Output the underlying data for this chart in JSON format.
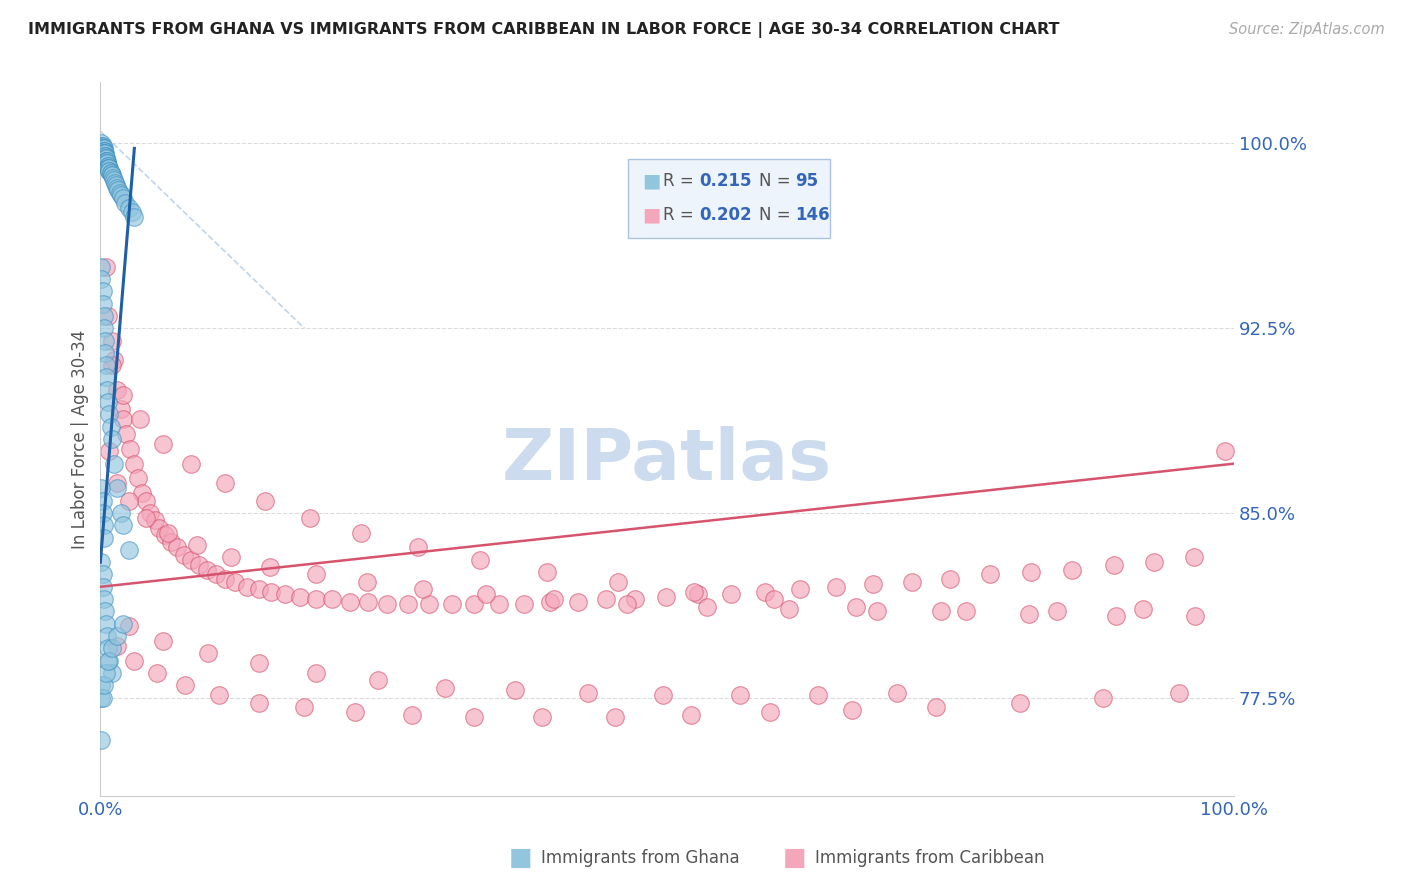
{
  "title": "IMMIGRANTS FROM GHANA VS IMMIGRANTS FROM CARIBBEAN IN LABOR FORCE | AGE 30-34 CORRELATION CHART",
  "source_text": "Source: ZipAtlas.com",
  "ylabel": "In Labor Force | Age 30-34",
  "xmin": 0.0,
  "xmax": 1.0,
  "ymin": 0.735,
  "ymax": 1.025,
  "yticks": [
    0.775,
    0.85,
    0.925,
    1.0
  ],
  "ytick_labels": [
    "77.5%",
    "85.0%",
    "92.5%",
    "100.0%"
  ],
  "xticks": [
    0.0,
    0.2,
    0.4,
    0.6,
    0.8,
    1.0
  ],
  "xtick_labels": [
    "0.0%",
    "",
    "",
    "",
    "",
    "100.0%"
  ],
  "ghana_R": 0.215,
  "ghana_N": 95,
  "caribbean_R": 0.202,
  "caribbean_N": 146,
  "ghana_color": "#92c5de",
  "ghana_edge": "#4393c3",
  "caribbean_color": "#f4a6bb",
  "caribbean_edge": "#d6536d",
  "ghana_line_color": "#1f5fa6",
  "caribbean_line_color": "#d6536d",
  "diag_line_color": "#b8d0e8",
  "watermark_text": "ZIPatlas",
  "watermark_color": "#ccdcee",
  "legend_box_facecolor": "#eef4fb",
  "legend_box_edgecolor": "#aac4e0",
  "axis_label_color": "#3366bb",
  "title_color": "#222222",
  "grid_color": "#cccccc",
  "background_color": "#ffffff",
  "ghana_x": [
    0.001,
    0.001,
    0.001,
    0.002,
    0.002,
    0.002,
    0.002,
    0.003,
    0.003,
    0.003,
    0.003,
    0.003,
    0.003,
    0.003,
    0.004,
    0.004,
    0.004,
    0.004,
    0.004,
    0.005,
    0.005,
    0.005,
    0.005,
    0.006,
    0.006,
    0.006,
    0.007,
    0.007,
    0.007,
    0.007,
    0.008,
    0.008,
    0.008,
    0.009,
    0.009,
    0.01,
    0.01,
    0.011,
    0.012,
    0.013,
    0.014,
    0.015,
    0.016,
    0.017,
    0.018,
    0.02,
    0.022,
    0.025,
    0.028,
    0.03,
    0.001,
    0.001,
    0.002,
    0.002,
    0.003,
    0.003,
    0.004,
    0.004,
    0.005,
    0.005,
    0.006,
    0.007,
    0.008,
    0.009,
    0.01,
    0.012,
    0.015,
    0.018,
    0.02,
    0.025,
    0.001,
    0.002,
    0.002,
    0.003,
    0.004,
    0.005,
    0.006,
    0.007,
    0.008,
    0.01,
    0.001,
    0.001,
    0.002,
    0.003,
    0.005,
    0.007,
    0.01,
    0.015,
    0.02,
    0.001,
    0.002,
    0.002,
    0.003,
    0.003,
    0.001
  ],
  "ghana_y": [
    1.0,
    0.999,
    0.999,
    0.999,
    0.998,
    0.998,
    0.998,
    0.998,
    0.997,
    0.997,
    0.997,
    0.996,
    0.996,
    0.996,
    0.996,
    0.995,
    0.995,
    0.995,
    0.994,
    0.994,
    0.994,
    0.993,
    0.993,
    0.993,
    0.992,
    0.992,
    0.991,
    0.991,
    0.99,
    0.99,
    0.99,
    0.989,
    0.989,
    0.988,
    0.988,
    0.987,
    0.987,
    0.986,
    0.985,
    0.984,
    0.983,
    0.982,
    0.981,
    0.98,
    0.979,
    0.978,
    0.976,
    0.974,
    0.972,
    0.97,
    0.95,
    0.945,
    0.94,
    0.935,
    0.93,
    0.925,
    0.92,
    0.915,
    0.91,
    0.905,
    0.9,
    0.895,
    0.89,
    0.885,
    0.88,
    0.87,
    0.86,
    0.85,
    0.845,
    0.835,
    0.83,
    0.825,
    0.82,
    0.815,
    0.81,
    0.805,
    0.8,
    0.795,
    0.79,
    0.785,
    0.78,
    0.775,
    0.775,
    0.78,
    0.785,
    0.79,
    0.795,
    0.8,
    0.805,
    0.86,
    0.855,
    0.85,
    0.845,
    0.84,
    0.758
  ],
  "caribbean_x": [
    0.005,
    0.007,
    0.01,
    0.012,
    0.015,
    0.018,
    0.02,
    0.023,
    0.026,
    0.03,
    0.033,
    0.037,
    0.04,
    0.044,
    0.048,
    0.052,
    0.057,
    0.062,
    0.068,
    0.074,
    0.08,
    0.087,
    0.094,
    0.102,
    0.11,
    0.119,
    0.129,
    0.14,
    0.151,
    0.163,
    0.176,
    0.19,
    0.204,
    0.22,
    0.236,
    0.253,
    0.271,
    0.29,
    0.31,
    0.33,
    0.352,
    0.374,
    0.397,
    0.421,
    0.446,
    0.472,
    0.499,
    0.527,
    0.556,
    0.586,
    0.617,
    0.649,
    0.682,
    0.716,
    0.75,
    0.785,
    0.821,
    0.857,
    0.894,
    0.93,
    0.965,
    0.992,
    0.008,
    0.015,
    0.025,
    0.04,
    0.06,
    0.085,
    0.115,
    0.15,
    0.19,
    0.235,
    0.285,
    0.34,
    0.4,
    0.465,
    0.535,
    0.608,
    0.685,
    0.764,
    0.844,
    0.92,
    0.01,
    0.02,
    0.035,
    0.055,
    0.08,
    0.11,
    0.145,
    0.185,
    0.23,
    0.28,
    0.335,
    0.394,
    0.457,
    0.524,
    0.594,
    0.667,
    0.742,
    0.819,
    0.896,
    0.966,
    0.015,
    0.03,
    0.05,
    0.075,
    0.105,
    0.14,
    0.18,
    0.225,
    0.275,
    0.33,
    0.39,
    0.454,
    0.521,
    0.591,
    0.663,
    0.737,
    0.811,
    0.885,
    0.952,
    0.025,
    0.055,
    0.095,
    0.14,
    0.19,
    0.245,
    0.304,
    0.366,
    0.43,
    0.496,
    0.564,
    0.633,
    0.703
  ],
  "caribbean_y": [
    0.95,
    0.93,
    0.92,
    0.912,
    0.9,
    0.892,
    0.888,
    0.882,
    0.876,
    0.87,
    0.864,
    0.858,
    0.855,
    0.85,
    0.847,
    0.844,
    0.841,
    0.838,
    0.836,
    0.833,
    0.831,
    0.829,
    0.827,
    0.825,
    0.823,
    0.822,
    0.82,
    0.819,
    0.818,
    0.817,
    0.816,
    0.815,
    0.815,
    0.814,
    0.814,
    0.813,
    0.813,
    0.813,
    0.813,
    0.813,
    0.813,
    0.813,
    0.814,
    0.814,
    0.815,
    0.815,
    0.816,
    0.817,
    0.817,
    0.818,
    0.819,
    0.82,
    0.821,
    0.822,
    0.823,
    0.825,
    0.826,
    0.827,
    0.829,
    0.83,
    0.832,
    0.875,
    0.875,
    0.862,
    0.855,
    0.848,
    0.842,
    0.837,
    0.832,
    0.828,
    0.825,
    0.822,
    0.819,
    0.817,
    0.815,
    0.813,
    0.812,
    0.811,
    0.81,
    0.81,
    0.81,
    0.811,
    0.91,
    0.898,
    0.888,
    0.878,
    0.87,
    0.862,
    0.855,
    0.848,
    0.842,
    0.836,
    0.831,
    0.826,
    0.822,
    0.818,
    0.815,
    0.812,
    0.81,
    0.809,
    0.808,
    0.808,
    0.796,
    0.79,
    0.785,
    0.78,
    0.776,
    0.773,
    0.771,
    0.769,
    0.768,
    0.767,
    0.767,
    0.767,
    0.768,
    0.769,
    0.77,
    0.771,
    0.773,
    0.775,
    0.777,
    0.804,
    0.798,
    0.793,
    0.789,
    0.785,
    0.782,
    0.779,
    0.778,
    0.777,
    0.776,
    0.776,
    0.776,
    0.777
  ],
  "carib_line_x0": 0.0,
  "carib_line_x1": 1.0,
  "carib_line_y0": 0.82,
  "carib_line_y1": 0.87,
  "ghana_line_x0": 0.0,
  "ghana_line_x1": 0.03,
  "ghana_line_y0": 0.83,
  "ghana_line_y1": 0.998,
  "diag_line_x0": 0.0,
  "diag_line_x1": 0.18,
  "diag_line_y0": 1.005,
  "diag_line_y1": 0.925
}
